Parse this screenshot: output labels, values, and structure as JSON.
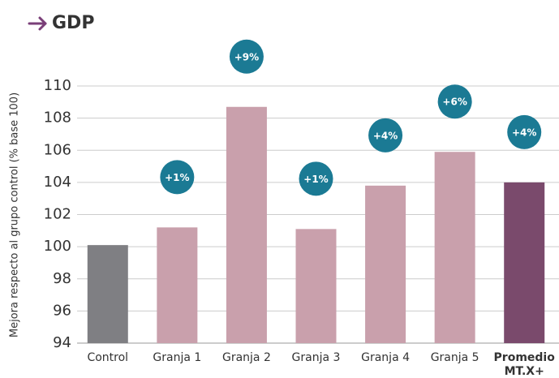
{
  "chart_data": {
    "type": "bar",
    "title": "GDP",
    "y_label": "Mejora respecto al grupo control (% base 100)",
    "categories": [
      "Control",
      "Granja 1",
      "Granja 2",
      "Granja 3",
      "Granja 4",
      "Granja 5",
      "Promedio MT.X+"
    ],
    "values": [
      100.1,
      101.2,
      108.7,
      101.1,
      103.8,
      105.9,
      104.0
    ],
    "badges": [
      null,
      "+1%",
      "+9%",
      "+1%",
      "+4%",
      "+6%",
      "+4%"
    ],
    "colors": [
      "#7f7f83",
      "#c9a0ac",
      "#c9a0ac",
      "#c9a0ac",
      "#c9a0ac",
      "#c9a0ac",
      "#7a4a6c"
    ],
    "bold": [
      false,
      false,
      false,
      false,
      false,
      false,
      true
    ],
    "badge_color": "#1b7a94",
    "ylim": [
      94,
      110
    ],
    "yticks": [
      94,
      96,
      98,
      100,
      102,
      104,
      106,
      108,
      110
    ],
    "grid": true
  }
}
